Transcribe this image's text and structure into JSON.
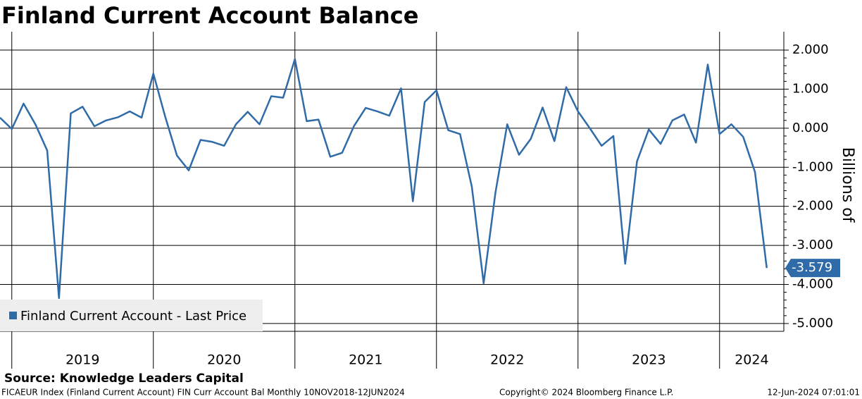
{
  "chart_data": {
    "type": "line",
    "title": "Finland Current Account Balance",
    "y_label": "Billions of",
    "source": "Source: Knowledge Leaders Capital",
    "footer_left": "FICAEUR Index (Finland Current Account) FIN Curr Account Bal  Monthly 10NOV2018-12JUN2024",
    "footer_center": "Copyright© 2024 Bloomberg Finance L.P.",
    "footer_right": "12-Jun-2024 07:01:01",
    "categories": [
      null,
      "2019",
      "2019",
      "2019",
      "2019",
      "2019",
      "2019",
      "2019",
      "2019",
      "2019",
      "2019",
      "2019",
      "2019",
      "2020",
      "2020",
      "2020",
      "2020",
      "2020",
      "2020",
      "2020",
      "2020",
      "2020",
      "2020",
      "2020",
      "2020",
      "2021",
      "2021",
      "2021",
      "2021",
      "2021",
      "2021",
      "2021",
      "2021",
      "2021",
      "2021",
      "2021",
      "2021",
      "2022",
      "2022",
      "2022",
      "2022",
      "2022",
      "2022",
      "2022",
      "2022",
      "2022",
      "2022",
      "2022",
      "2022",
      "2023",
      "2023",
      "2023",
      "2023",
      "2023",
      "2023",
      "2023",
      "2023",
      "2023",
      "2023",
      "2023",
      "2023",
      "2024",
      "2024",
      "2024",
      "2024",
      "2024"
    ],
    "series": [
      {
        "name": "Finland Current Account - Last Price",
        "color": "#2f6ba8",
        "values": [
          0.27,
          -0.02,
          0.63,
          0.1,
          -0.57,
          -4.35,
          0.38,
          0.55,
          0.05,
          0.2,
          0.28,
          0.43,
          0.27,
          1.4,
          0.3,
          -0.7,
          -1.08,
          -0.3,
          -0.35,
          -0.45,
          0.1,
          0.42,
          0.1,
          0.82,
          0.78,
          1.77,
          0.18,
          0.22,
          -0.73,
          -0.63,
          0.05,
          0.52,
          0.43,
          0.32,
          1.02,
          -1.87,
          0.67,
          0.97,
          -0.05,
          -0.15,
          -1.5,
          -3.97,
          -1.65,
          0.1,
          -0.68,
          -0.27,
          0.53,
          -0.33,
          1.05,
          0.43,
          0.0,
          -0.45,
          -0.2,
          -3.47,
          -0.85,
          -0.03,
          -0.4,
          0.2,
          0.35,
          -0.37,
          1.63,
          -0.15,
          0.1,
          -0.22,
          -1.12,
          -3.579
        ]
      }
    ],
    "ylim": [
      -5.2,
      2.47
    ],
    "yticks": [
      {
        "value": 2,
        "label": "2.000"
      },
      {
        "value": 1,
        "label": "1.000"
      },
      {
        "value": 0,
        "label": "0.000"
      },
      {
        "value": -1,
        "label": "-1.000"
      },
      {
        "value": -2,
        "label": "-2.000"
      },
      {
        "value": -3,
        "label": "-3.000"
      },
      {
        "value": -4,
        "label": "-4.000"
      },
      {
        "value": -5,
        "label": "-5.000"
      }
    ],
    "grid": true,
    "legend": "lower-left"
  }
}
